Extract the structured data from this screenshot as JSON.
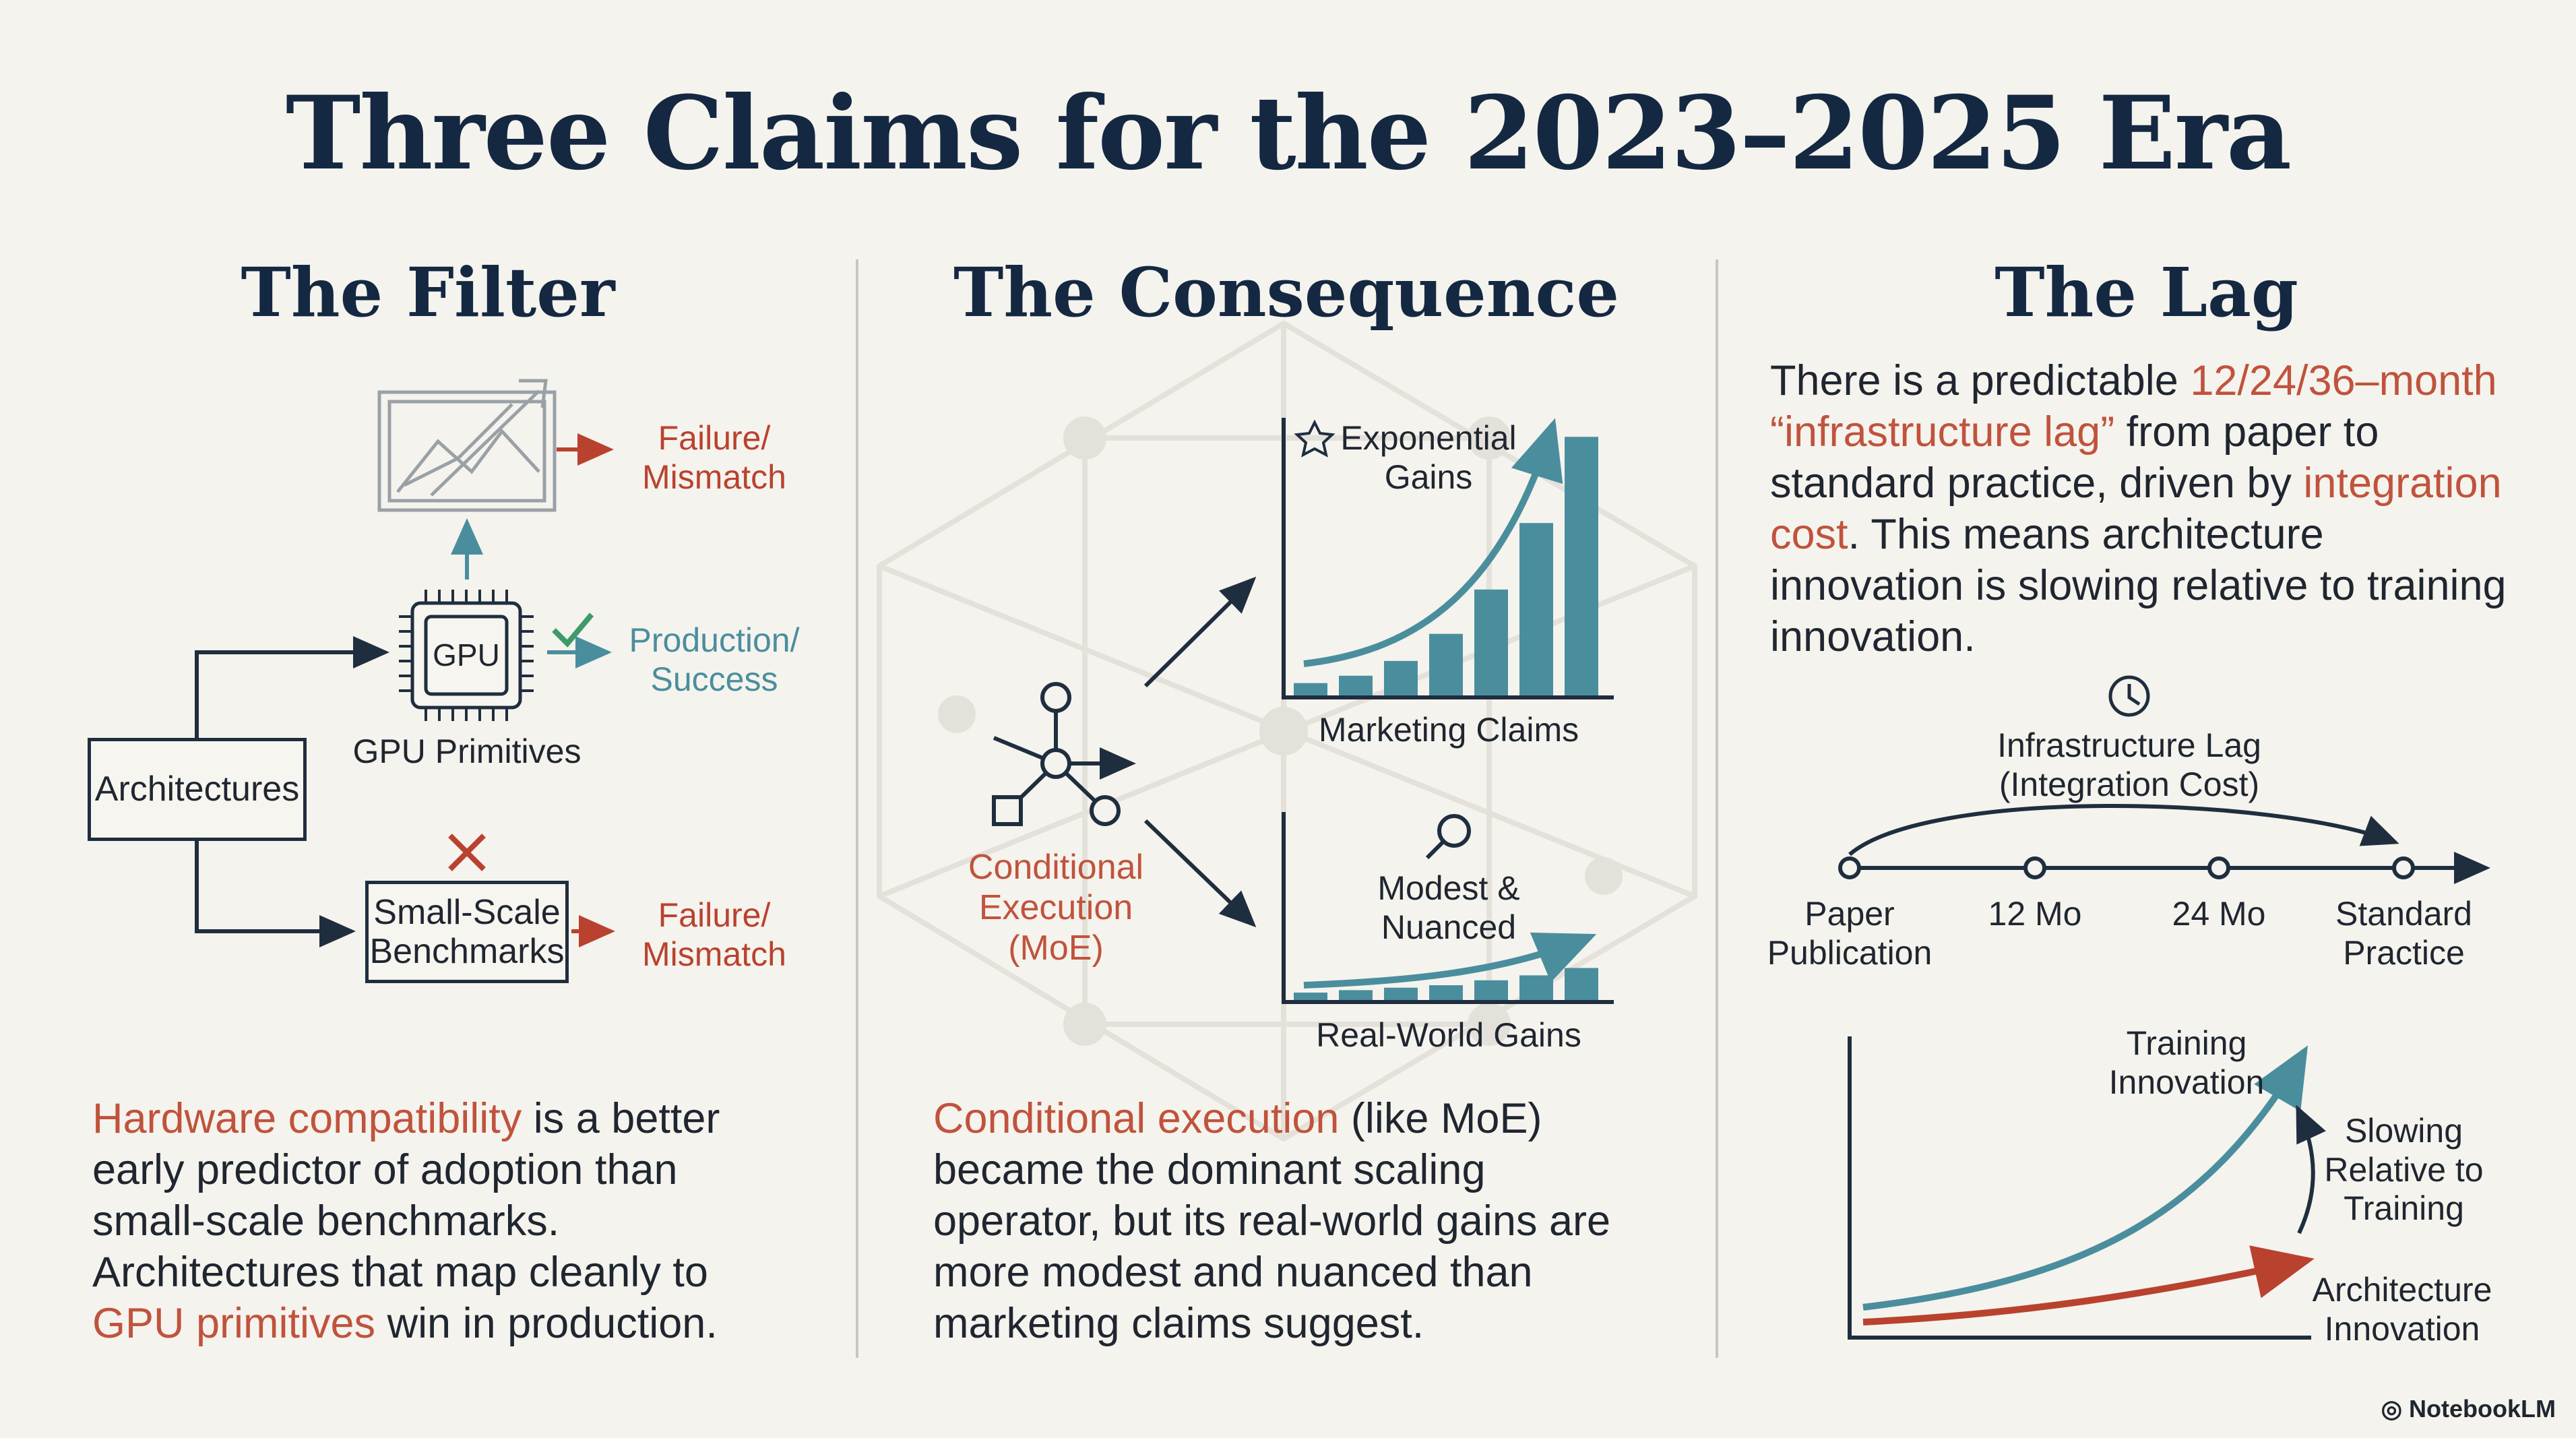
{
  "title": "Three Claims for the 2023–2025 Era",
  "columns": {
    "filter": {
      "heading": "The Filter",
      "architectures": "Architectures",
      "gpu_chip": "GPU",
      "gpu_primitives": "GPU Primitives",
      "small_scale": "Small-Scale Benchmarks",
      "failure_top": "Failure/ Mismatch",
      "failure_bottom": "Failure/ Mismatch",
      "success": "Production/ Success",
      "para": {
        "p1": "Hardware compatibility",
        "p2": " is a better early predictor of adoption than small-scale benchmarks. Architectures that map cleanly to ",
        "p3": "GPU primitives",
        "p4": " win in production."
      }
    },
    "consequence": {
      "heading": "The Consequence",
      "conditional": "Conditional Execution (MoE)",
      "exponential": "Exponential Gains",
      "marketing": "Marketing Claims",
      "modest": "Modest & Nuanced",
      "real_world": "Real-World Gains",
      "para": {
        "p1": "Conditional execution",
        "p2": " (like MoE) became the dominant scaling operator, but its real-world gains are more modest and nuanced than marketing claims suggest."
      }
    },
    "lag": {
      "heading": "The Lag",
      "para": {
        "p1": "There is a predictable ",
        "p2": "12/24/36–month “infrastructure lag”",
        "p3": " from paper to standard practice, driven by ",
        "p4": "integration cost",
        "p5": ". This means architecture innovation is slowing relative to training innovation."
      },
      "lag_label": "Infrastructure Lag (Integration Cost)",
      "timeline": [
        "Paper Publication",
        "12 Mo",
        "24 Mo",
        "Standard Practice"
      ],
      "training": "Training Innovation",
      "slowing": "Slowing Relative to Training",
      "architecture": "Architecture Innovation"
    }
  },
  "chart_data": [
    {
      "type": "bar",
      "title": "Marketing Claims",
      "annotation": "Exponential Gains",
      "values": [
        5,
        8,
        14,
        25,
        43,
        70,
        105
      ],
      "ylim": [
        0,
        110
      ]
    },
    {
      "type": "bar",
      "title": "Real-World Gains",
      "annotation": "Modest & Nuanced",
      "values": [
        3,
        4,
        5,
        6,
        8,
        10,
        13
      ],
      "ylim": [
        0,
        110
      ]
    }
  ],
  "colors": {
    "navy": "#142842",
    "red": "#b9422f",
    "teal": "#4a8e9e",
    "highlight": "#c0533d"
  },
  "brand": "NotebookLM"
}
